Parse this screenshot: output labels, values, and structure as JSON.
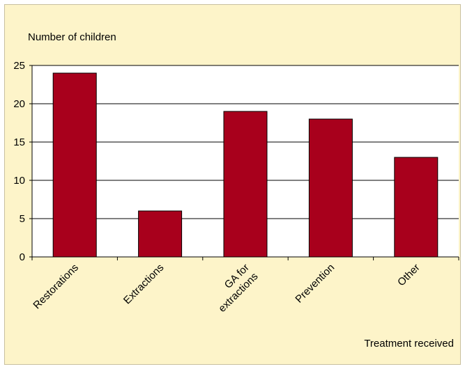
{
  "chart_data": {
    "type": "bar",
    "title": "",
    "ylabel": "Number of children",
    "xlabel": "Treatment received",
    "categories": [
      "Restorations",
      "Extractions",
      "GA for extractions",
      "Prevention",
      "Other"
    ],
    "category_lines": [
      [
        "Restorations"
      ],
      [
        "Extractions"
      ],
      [
        "GA for",
        "extractions"
      ],
      [
        "Prevention"
      ],
      [
        "Other"
      ]
    ],
    "values": [
      24,
      6,
      19,
      18,
      13
    ],
    "ylim": [
      0,
      25
    ],
    "yticks": [
      0,
      5,
      10,
      15,
      20,
      25
    ],
    "grid": true,
    "colors": {
      "bar": "#a8001c",
      "plot_bg": "#ffffff",
      "panel_bg": "#fdf4c9"
    }
  }
}
